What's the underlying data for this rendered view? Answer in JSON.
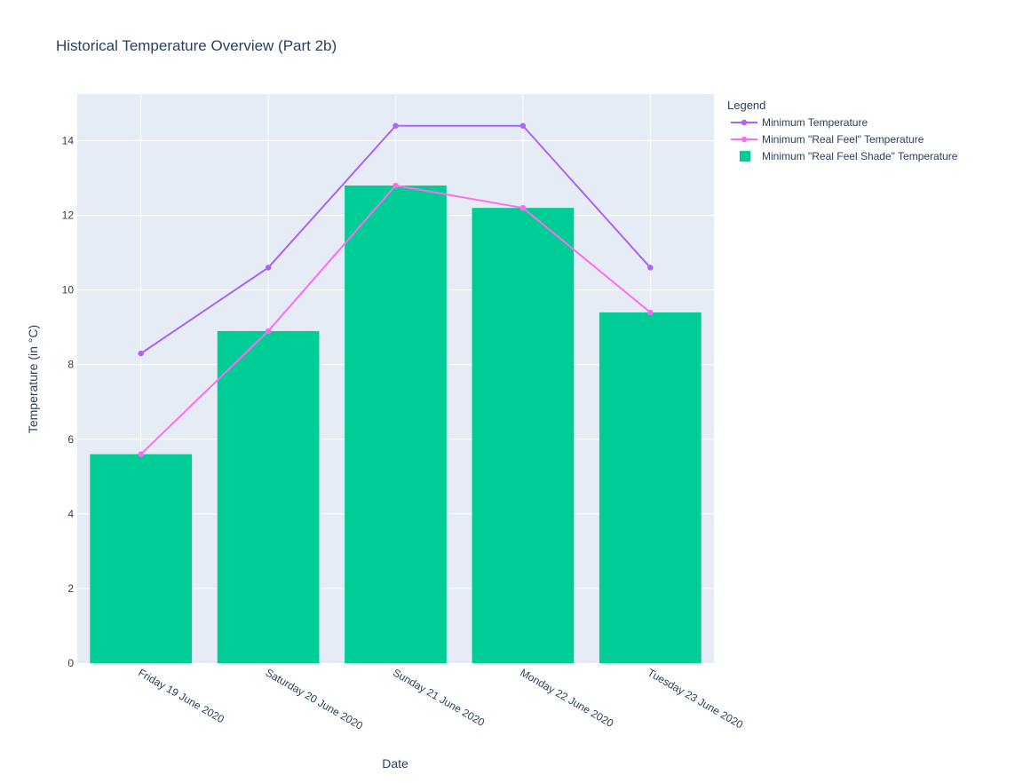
{
  "chart_data": {
    "type": "bar",
    "title": "Historical Temperature Overview (Part 2b)",
    "xlabel": "Date",
    "ylabel": "Temperature (in °C)",
    "categories": [
      "Friday 19 June 2020",
      "Saturday 20 June 2020",
      "Sunday 21 June 2020",
      "Monday 22 June 2020",
      "Tuesday 23 June 2020"
    ],
    "ylim": [
      0,
      15.25
    ],
    "yticks": [
      0,
      2,
      4,
      6,
      8,
      10,
      12,
      14
    ],
    "grid": true,
    "legend": {
      "title": "Legend",
      "placement": "top-right, outside plot"
    },
    "series": [
      {
        "name": "Minimum Temperature",
        "kind": "line+markers",
        "color": "#ab63fa",
        "values": [
          8.3,
          10.6,
          14.4,
          14.4,
          10.6
        ]
      },
      {
        "name": "Minimum \"Real Feel\" Temperature",
        "kind": "line+markers",
        "color": "#ff6cf3",
        "values": [
          5.6,
          8.9,
          12.8,
          12.2,
          9.4
        ]
      },
      {
        "name": "Minimum \"Real Feel Shade\" Temperature",
        "kind": "bar",
        "color": "#00cc96",
        "values": [
          5.6,
          8.9,
          12.8,
          12.2,
          9.4
        ]
      }
    ],
    "colors": {
      "plot_background": "#e5ecf6",
      "grid": "#ffffff",
      "text": "#2a3f5f"
    }
  }
}
